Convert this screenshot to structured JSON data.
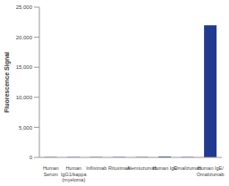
{
  "chart_data": {
    "type": "bar",
    "y_label": "Fluorescence Signal",
    "categories": [
      "Human Serum",
      "Human IgG1/kappa (myeloma)",
      "Infliximab",
      "Rituximab",
      "Alemtuzumab",
      "Human IgE",
      "Omalizumab",
      "Human IgE/Omalizumab"
    ],
    "values": [
      60,
      60,
      60,
      60,
      60,
      150,
      60,
      22000
    ],
    "color": "#1f3a8f",
    "ylim": [
      0,
      25000
    ],
    "yticks": [
      0,
      {
        "value": 5000,
        "label": "5,000"
      },
      {
        "value": 10000,
        "label": "10,000"
      },
      {
        "value": 15000,
        "label": "15,000"
      },
      {
        "value": 20000,
        "label": "20,000"
      },
      {
        "value": 25000,
        "label": "25,000"
      }
    ],
    "grid": false
  }
}
